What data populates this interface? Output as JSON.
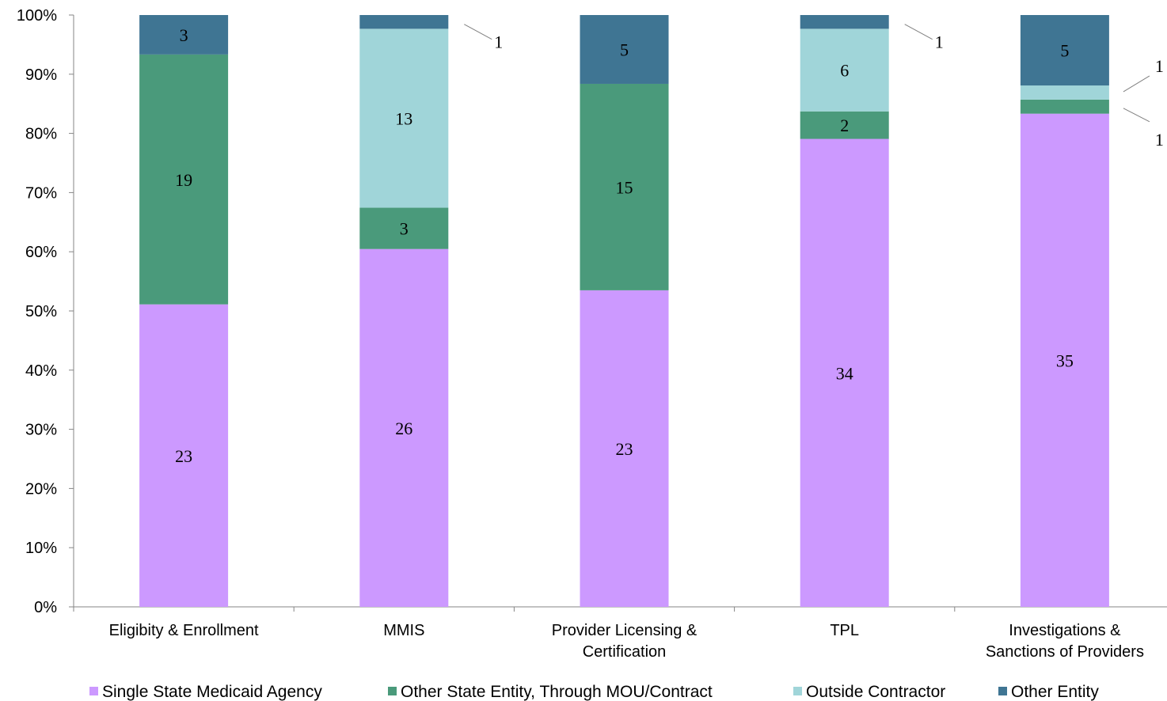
{
  "chart_data": {
    "type": "bar",
    "stacked": "percent",
    "categories": [
      [
        "Eligibity & Enrollment"
      ],
      [
        "MMIS"
      ],
      [
        "Provider Licensing &",
        "Certification"
      ],
      [
        "TPL"
      ],
      [
        "Investigations &",
        "Sanctions of Providers"
      ]
    ],
    "series": [
      {
        "name": "Single State Medicaid Agency",
        "color": "#cc99ff",
        "values": [
          23,
          26,
          23,
          34,
          35
        ]
      },
      {
        "name": "Other State Entity, Through MOU/Contract",
        "color": "#4a9a7b",
        "values": [
          19,
          3,
          15,
          2,
          1
        ]
      },
      {
        "name": "Outside Contractor",
        "color": "#a0d5d9",
        "values": [
          0,
          13,
          0,
          6,
          1
        ]
      },
      {
        "name": "Other Entity",
        "color": "#3f7593",
        "values": [
          3,
          1,
          5,
          1,
          5
        ]
      }
    ],
    "ylim": [
      0,
      100
    ],
    "yticks": [
      "0%",
      "10%",
      "20%",
      "30%",
      "40%",
      "50%",
      "60%",
      "70%",
      "80%",
      "90%",
      "100%"
    ],
    "title": "",
    "xlabel": "",
    "ylabel": "",
    "legend_position": "bottom",
    "grid": false
  }
}
